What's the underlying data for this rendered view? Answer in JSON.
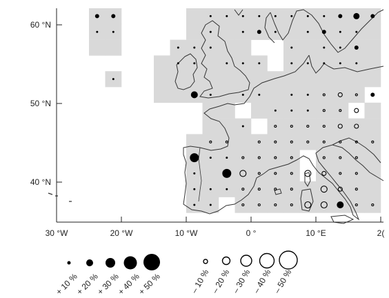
{
  "map": {
    "lat_labels": [
      {
        "id": "lat-60",
        "text": "60 °N"
      },
      {
        "id": "lat-50",
        "text": "50 °N"
      },
      {
        "id": "lat-40",
        "text": "40 °N"
      }
    ],
    "lon_labels": [
      {
        "id": "lon-30w",
        "text": "30 °W"
      },
      {
        "id": "lon-20w",
        "text": "20 °W"
      },
      {
        "id": "lon-10w",
        "text": "10 °W"
      },
      {
        "id": "lon-0",
        "text": "0 °"
      },
      {
        "id": "lon-10e",
        "text": "10 °E"
      },
      {
        "id": "lon-20e",
        "text": "2("
      }
    ],
    "legend": {
      "positive": [
        "+ 10 %",
        "+ 20 %",
        "+ 30 %",
        "+ 40 %",
        "+ 50 %"
      ],
      "negative": [
        "– 10 %",
        "– 20 %",
        "– 30 %",
        "– 40 %",
        "– 50 %"
      ]
    },
    "colors": {
      "grid_cell": "#d9d9d9",
      "coast": "#333333",
      "positive_marker": "#000000",
      "negative_marker": "#000000",
      "axis": "#222222"
    }
  }
}
